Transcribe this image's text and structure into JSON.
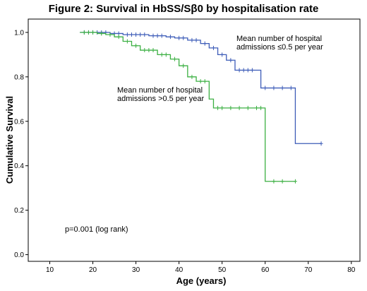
{
  "chart_data": {
    "type": "line",
    "title": "Figure 2: Survival in HbSS/Sβ0 by hospitalisation rate",
    "xlabel": "Age (years)",
    "ylabel": "Cumulative Survival",
    "xlim": [
      5,
      82
    ],
    "ylim": [
      -0.03,
      1.06
    ],
    "x_ticks": [
      "10",
      "20",
      "30",
      "40",
      "50",
      "60",
      "70",
      "80"
    ],
    "y_ticks": [
      "0.0",
      "0.2",
      "0.4",
      "0.6",
      "0.8",
      "1.0"
    ],
    "grid": false,
    "legend": "none",
    "series": [
      {
        "name": "Mean number of hospital admissions ≤0.5 per year",
        "color": "#3d5cb8",
        "x": [
          17,
          24,
          27,
          33,
          37,
          39,
          42,
          45,
          47,
          49,
          51,
          53,
          59,
          67,
          73
        ],
        "y": [
          1.0,
          0.995,
          0.99,
          0.985,
          0.98,
          0.975,
          0.965,
          0.95,
          0.93,
          0.9,
          0.875,
          0.83,
          0.75,
          0.5,
          0.5
        ],
        "censored_x": [
          18,
          19,
          20,
          21,
          22,
          23,
          25,
          26,
          28,
          29,
          30,
          31,
          32,
          34,
          35,
          36,
          38,
          40,
          41,
          43,
          44,
          46,
          48,
          50,
          52,
          54,
          55,
          56,
          57,
          60,
          62,
          64,
          66,
          73
        ]
      },
      {
        "name": "Mean number of hospital admissions >0.5 per year",
        "color": "#3cb043",
        "x": [
          17,
          21,
          23,
          25,
          27,
          29,
          31,
          35,
          38,
          40,
          42,
          44,
          47,
          48,
          60,
          67
        ],
        "y": [
          1.0,
          0.995,
          0.99,
          0.98,
          0.96,
          0.94,
          0.92,
          0.9,
          0.88,
          0.85,
          0.8,
          0.78,
          0.7,
          0.66,
          0.33,
          0.33
        ],
        "censored_x": [
          18,
          19,
          20,
          22,
          24,
          26,
          28,
          30,
          32,
          33,
          34,
          36,
          37,
          39,
          41,
          43,
          45,
          46,
          49,
          50,
          52,
          54,
          56,
          58,
          59,
          62,
          64,
          67
        ]
      }
    ],
    "annotations": [
      {
        "lines": [
          "Mean number of hospital",
          "admissions ≤0.5 per year"
        ]
      },
      {
        "lines": [
          "Mean number of hospital",
          "admissions >0.5 per year"
        ]
      },
      {
        "lines": [
          "p=0.001 (log rank)"
        ]
      }
    ]
  }
}
